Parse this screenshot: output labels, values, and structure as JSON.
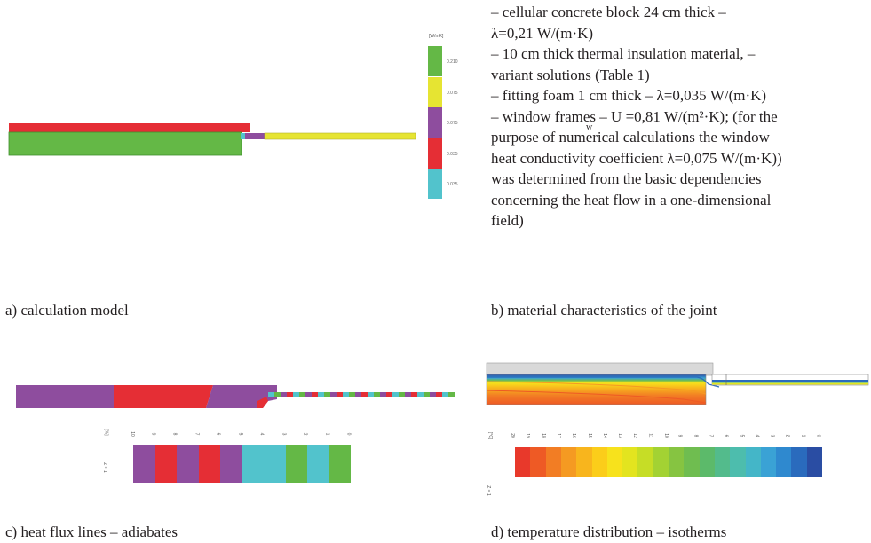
{
  "panel_a": {
    "caption": "a) calculation model",
    "legend_unit": "[W/mK]",
    "legend": [
      {
        "value": "0.210",
        "color": "#64b846"
      },
      {
        "value": "0.075",
        "color": "#e6e432"
      },
      {
        "value": "0.075",
        "color": "#8e4d9e"
      },
      {
        "value": "0.035",
        "color": "#e52e35"
      },
      {
        "value": "0.035",
        "color": "#52c3cc"
      }
    ]
  },
  "panel_b": {
    "caption": "b) material characteristics of the joint",
    "lines": [
      "– cellular concrete block 24 cm thick –",
      "λ=0,21 W/(m·K)",
      "– 10 cm thick thermal insulation material, –",
      "variant solutions (Table 1)",
      "– fitting foam 1 cm thick – λ=0,035 W/(m·K)",
      "– window frames – U",
      "=0,81 W/(m²·K); (for the",
      "w",
      "purpose of numerical calculations the window",
      "heat conductivity coefficient λ=0,075 W/(m·K))",
      "was determined from the basic dependencies",
      "concerning the heat flow in a one-dimensional",
      "field)"
    ]
  },
  "panel_c": {
    "caption": "c) heat flux lines – adiabates",
    "unit": "[%]",
    "z_label": "Z = 1",
    "scale_labels": [
      "10",
      "9",
      "8",
      "7",
      "6",
      "5",
      "4",
      "3",
      "2",
      "1",
      "0"
    ],
    "scale_colors": [
      "#8e4d9e",
      "#e52e35",
      "#8e4d9e",
      "#e52e35",
      "#8e4d9e",
      "#52c3cc",
      "#52c3cc",
      "#64b846",
      "#52c3cc",
      "#64b846"
    ]
  },
  "panel_d": {
    "caption": "d) temperature distribution – isotherms",
    "unit": "[°C]",
    "z_label": "Z = 1",
    "scale_labels": [
      "20",
      "19",
      "18",
      "17",
      "16",
      "15",
      "14",
      "13",
      "12",
      "11",
      "10",
      "9",
      "8",
      "7",
      "6",
      "5",
      "4",
      "3",
      "2",
      "1",
      "0"
    ],
    "scale_colors": [
      "#e8392b",
      "#ee5a25",
      "#f27d24",
      "#f59a22",
      "#f8b51d",
      "#fbcd1a",
      "#f7e21c",
      "#e3e41f",
      "#c6dd26",
      "#a3d233",
      "#86c441",
      "#6fbd50",
      "#5cba6a",
      "#53bb8c",
      "#4dbdad",
      "#44b6c8",
      "#3aa2d5",
      "#2f89cf",
      "#2a6bbd",
      "#2a4da3"
    ]
  }
}
